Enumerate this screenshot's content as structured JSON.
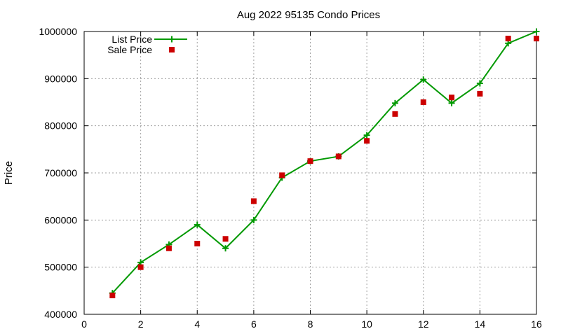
{
  "chart_data": {
    "type": "line",
    "title": "Aug 2022 95135 Condo Prices",
    "xlabel": "",
    "ylabel": "Price",
    "xlim": [
      0,
      16
    ],
    "ylim": [
      400000,
      1000000
    ],
    "xticks": [
      0,
      2,
      4,
      6,
      8,
      10,
      12,
      14,
      16
    ],
    "yticks": [
      400000,
      500000,
      600000,
      700000,
      800000,
      900000,
      1000000
    ],
    "grid": true,
    "legend_position": "top-left",
    "series": [
      {
        "name": "List Price",
        "style": "lines+points",
        "marker": "plus",
        "color": "#009900",
        "x": [
          1,
          2,
          3,
          4,
          5,
          6,
          7,
          8,
          9,
          10,
          11,
          12,
          13,
          14,
          15,
          16
        ],
        "y": [
          445000,
          510000,
          548000,
          590000,
          540000,
          600000,
          690000,
          725000,
          735000,
          780000,
          848000,
          898000,
          848000,
          890000,
          975000,
          1000000
        ]
      },
      {
        "name": "Sale Price",
        "style": "points",
        "marker": "square",
        "color": "#cc0000",
        "x": [
          1,
          2,
          3,
          4,
          5,
          6,
          7,
          8,
          9,
          10,
          11,
          12,
          13,
          14,
          15,
          16
        ],
        "y": [
          440000,
          500000,
          540000,
          550000,
          560000,
          640000,
          695000,
          725000,
          735000,
          768000,
          825000,
          850000,
          860000,
          868000,
          985000,
          985000
        ]
      }
    ]
  }
}
